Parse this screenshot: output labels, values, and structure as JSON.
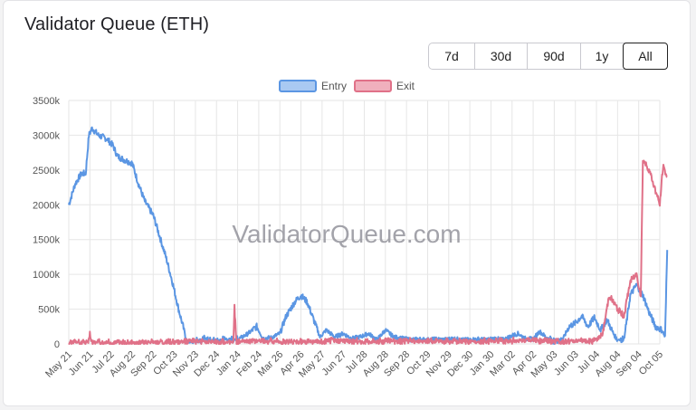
{
  "title": "Validator Queue (ETH)",
  "range_buttons": [
    {
      "label": "7d",
      "active": false
    },
    {
      "label": "30d",
      "active": false
    },
    {
      "label": "90d",
      "active": false
    },
    {
      "label": "1y",
      "active": false
    },
    {
      "label": "All",
      "active": true
    }
  ],
  "watermark": "ValidatorQueue.com",
  "colors": {
    "entry": "#5b96e3",
    "exit": "#e07188",
    "entry_fill": "#a9c9f2",
    "exit_fill": "#f0b0bd",
    "grid": "#e6e6e6"
  },
  "chart_data": {
    "type": "line",
    "title": "",
    "xlabel": "",
    "ylabel": "",
    "ylim": [
      0,
      3500000
    ],
    "yticks": [
      "0",
      "500k",
      "1000k",
      "1500k",
      "2000k",
      "2500k",
      "3000k",
      "3500k"
    ],
    "categories": [
      "May 21",
      "Jun 21",
      "Jul 22",
      "Aug 22",
      "Sep 22",
      "Oct 23",
      "Nov 23",
      "Dec 24",
      "Jan 24",
      "Feb 24",
      "Mar 26",
      "Apr 26",
      "May 27",
      "Jun 27",
      "Jul 28",
      "Aug 28",
      "Sep 28",
      "Oct 29",
      "Nov 29",
      "Dec 30",
      "Jan 30",
      "Mar 02",
      "Apr 02",
      "May 03",
      "Jun 03",
      "Jul 04",
      "Aug 04",
      "Sep 04",
      "Oct 05"
    ],
    "legend_position": "top-center",
    "grid": true,
    "series": [
      {
        "name": "Entry",
        "points": [
          [
            0,
            2000000
          ],
          [
            0.3,
            2300000
          ],
          [
            0.6,
            2450000
          ],
          [
            0.8,
            2450000
          ],
          [
            0.95,
            3000000
          ],
          [
            1.1,
            3100000
          ],
          [
            1.4,
            3000000
          ],
          [
            1.8,
            2950000
          ],
          [
            2.1,
            2850000
          ],
          [
            2.3,
            2700000
          ],
          [
            2.6,
            2650000
          ],
          [
            3.0,
            2600000
          ],
          [
            3.3,
            2300000
          ],
          [
            3.6,
            2050000
          ],
          [
            4.0,
            1850000
          ],
          [
            4.3,
            1550000
          ],
          [
            4.6,
            1250000
          ],
          [
            4.9,
            900000
          ],
          [
            5.2,
            500000
          ],
          [
            5.5,
            150000
          ],
          [
            5.6,
            0
          ],
          [
            6.0,
            20000
          ],
          [
            6.5,
            60000
          ],
          [
            7.0,
            30000
          ],
          [
            7.5,
            50000
          ],
          [
            8.0,
            60000
          ],
          [
            8.5,
            150000
          ],
          [
            8.9,
            250000
          ],
          [
            9.2,
            80000
          ],
          [
            9.6,
            90000
          ],
          [
            10.0,
            150000
          ],
          [
            10.3,
            400000
          ],
          [
            10.7,
            600000
          ],
          [
            11.0,
            700000
          ],
          [
            11.3,
            600000
          ],
          [
            11.6,
            350000
          ],
          [
            11.9,
            100000
          ],
          [
            12.2,
            200000
          ],
          [
            12.6,
            100000
          ],
          [
            13.0,
            150000
          ],
          [
            13.4,
            80000
          ],
          [
            13.8,
            100000
          ],
          [
            14.2,
            150000
          ],
          [
            14.6,
            60000
          ],
          [
            15.0,
            200000
          ],
          [
            15.4,
            100000
          ],
          [
            15.8,
            80000
          ],
          [
            16.2,
            60000
          ],
          [
            16.6,
            70000
          ],
          [
            17.0,
            60000
          ],
          [
            17.4,
            70000
          ],
          [
            17.8,
            60000
          ],
          [
            18.2,
            80000
          ],
          [
            18.6,
            60000
          ],
          [
            19.0,
            60000
          ],
          [
            19.4,
            70000
          ],
          [
            19.8,
            60000
          ],
          [
            20.2,
            80000
          ],
          [
            20.6,
            60000
          ],
          [
            21.0,
            120000
          ],
          [
            21.3,
            150000
          ],
          [
            21.6,
            80000
          ],
          [
            22.0,
            70000
          ],
          [
            22.3,
            180000
          ],
          [
            22.6,
            100000
          ],
          [
            23.0,
            20000
          ],
          [
            23.4,
            60000
          ],
          [
            23.7,
            250000
          ],
          [
            24.0,
            300000
          ],
          [
            24.3,
            400000
          ],
          [
            24.6,
            250000
          ],
          [
            24.9,
            380000
          ],
          [
            25.2,
            200000
          ],
          [
            25.5,
            350000
          ],
          [
            25.8,
            150000
          ],
          [
            26.0,
            50000
          ],
          [
            26.3,
            50000
          ],
          [
            26.6,
            700000
          ],
          [
            26.9,
            850000
          ],
          [
            27.2,
            700000
          ],
          [
            27.5,
            450000
          ],
          [
            27.8,
            250000
          ],
          [
            28.1,
            200000
          ],
          [
            28.25,
            100000
          ],
          [
            28.35,
            1350000
          ]
        ]
      },
      {
        "name": "Exit",
        "points": [
          [
            0,
            0
          ],
          [
            0.9,
            0
          ],
          [
            1.0,
            150000
          ],
          [
            1.1,
            0
          ],
          [
            5.0,
            0
          ],
          [
            6.0,
            20000
          ],
          [
            7.0,
            0
          ],
          [
            7.8,
            0
          ],
          [
            7.85,
            520000
          ],
          [
            7.95,
            0
          ],
          [
            8.5,
            20000
          ],
          [
            9.5,
            20000
          ],
          [
            10.4,
            0
          ],
          [
            11.0,
            20000
          ],
          [
            12.0,
            0
          ],
          [
            12.5,
            30000
          ],
          [
            14.0,
            10000
          ],
          [
            15.0,
            20000
          ],
          [
            16.0,
            20000
          ],
          [
            17.0,
            20000
          ],
          [
            18.0,
            10000
          ],
          [
            19.0,
            10000
          ],
          [
            20.0,
            20000
          ],
          [
            21.0,
            20000
          ],
          [
            22.0,
            30000
          ],
          [
            23.0,
            20000
          ],
          [
            24.0,
            20000
          ],
          [
            24.8,
            20000
          ],
          [
            25.0,
            50000
          ],
          [
            25.3,
            150000
          ],
          [
            25.6,
            700000
          ],
          [
            26.0,
            500000
          ],
          [
            26.3,
            400000
          ],
          [
            26.6,
            900000
          ],
          [
            26.9,
            1000000
          ],
          [
            27.1,
            700000
          ],
          [
            27.2,
            2650000
          ],
          [
            27.5,
            2500000
          ],
          [
            27.8,
            2200000
          ],
          [
            28.0,
            2000000
          ],
          [
            28.15,
            2550000
          ],
          [
            28.35,
            2400000
          ]
        ]
      }
    ]
  }
}
